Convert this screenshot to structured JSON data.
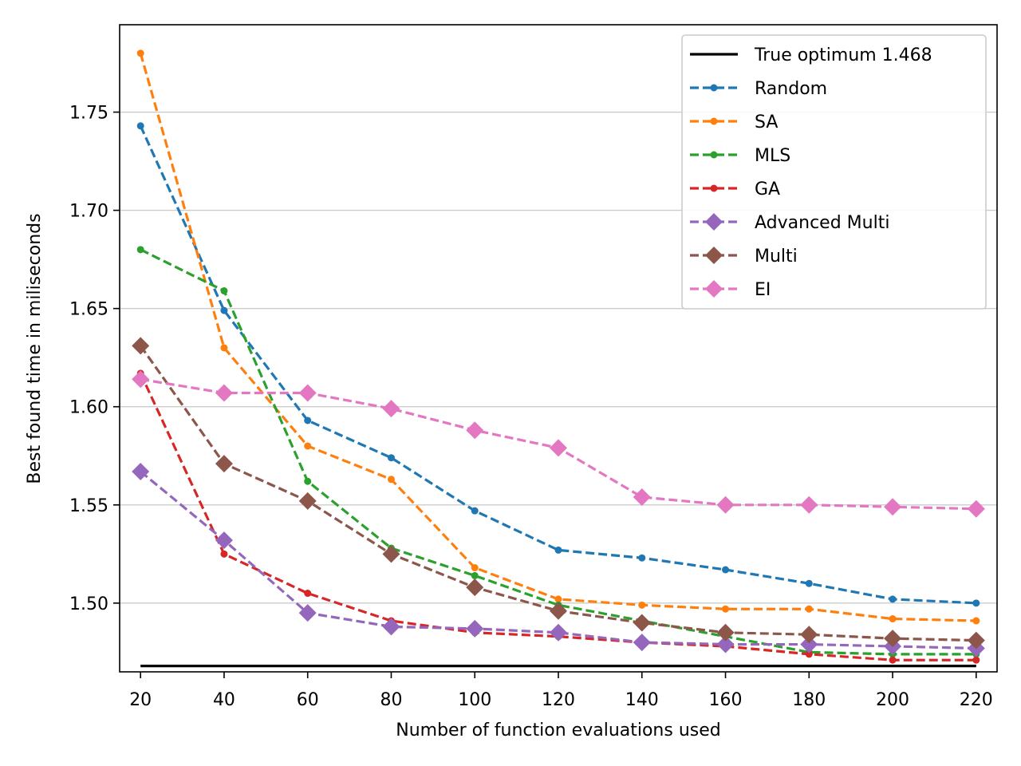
{
  "chart_data": {
    "type": "line",
    "title": "",
    "xlabel": "Number of function evaluations used",
    "ylabel": "Best found time in miliseconds",
    "x": [
      20,
      40,
      60,
      80,
      100,
      120,
      140,
      160,
      180,
      200,
      220
    ],
    "xticks": [
      "20",
      "40",
      "60",
      "80",
      "100",
      "120",
      "140",
      "160",
      "180",
      "200",
      "220"
    ],
    "yticks": [
      "1.50",
      "1.55",
      "1.60",
      "1.65",
      "1.70",
      "1.75"
    ],
    "xlim": [
      15,
      225
    ],
    "ylim": [
      1.465,
      1.7945
    ],
    "ytick_values": [
      1.5,
      1.55,
      1.6,
      1.65,
      1.7,
      1.75
    ],
    "grid": "y-major",
    "legend_position": "top-right",
    "series": [
      {
        "name": "True optimum 1.468",
        "color": "#000000",
        "style": "solid",
        "marker": "none",
        "values": [
          1.468,
          1.468,
          1.468,
          1.468,
          1.468,
          1.468,
          1.468,
          1.468,
          1.468,
          1.468,
          1.468
        ]
      },
      {
        "name": "Random",
        "color": "#1f77b4",
        "style": "dashed",
        "marker": "dot",
        "values": [
          1.743,
          1.649,
          1.593,
          1.574,
          1.547,
          1.527,
          1.523,
          1.517,
          1.51,
          1.502,
          1.5
        ]
      },
      {
        "name": "SA",
        "color": "#ff7f0e",
        "style": "dashed",
        "marker": "dot",
        "values": [
          1.78,
          1.63,
          1.58,
          1.563,
          1.518,
          1.502,
          1.499,
          1.497,
          1.497,
          1.492,
          1.491
        ]
      },
      {
        "name": "MLS",
        "color": "#2ca02c",
        "style": "dashed",
        "marker": "dot",
        "values": [
          1.68,
          1.659,
          1.562,
          1.528,
          1.514,
          1.499,
          1.491,
          1.483,
          1.475,
          1.474,
          1.474
        ]
      },
      {
        "name": "GA",
        "color": "#d62728",
        "style": "dashed",
        "marker": "dot",
        "values": [
          1.617,
          1.525,
          1.505,
          1.491,
          1.485,
          1.483,
          1.48,
          1.478,
          1.474,
          1.471,
          1.471
        ]
      },
      {
        "name": "Advanced Multi",
        "color": "#9467bd",
        "style": "dashed",
        "marker": "diamond",
        "values": [
          1.567,
          1.532,
          1.495,
          1.488,
          1.487,
          1.485,
          1.48,
          1.479,
          1.479,
          1.478,
          1.477
        ]
      },
      {
        "name": "Multi",
        "color": "#8c564b",
        "style": "dashed",
        "marker": "diamond",
        "values": [
          1.631,
          1.571,
          1.552,
          1.525,
          1.508,
          1.496,
          1.49,
          1.485,
          1.484,
          1.482,
          1.481
        ]
      },
      {
        "name": "EI",
        "color": "#e377c2",
        "style": "dashed",
        "marker": "diamond",
        "values": [
          1.614,
          1.607,
          1.607,
          1.599,
          1.588,
          1.579,
          1.554,
          1.55,
          1.55,
          1.549,
          1.548
        ]
      }
    ]
  }
}
